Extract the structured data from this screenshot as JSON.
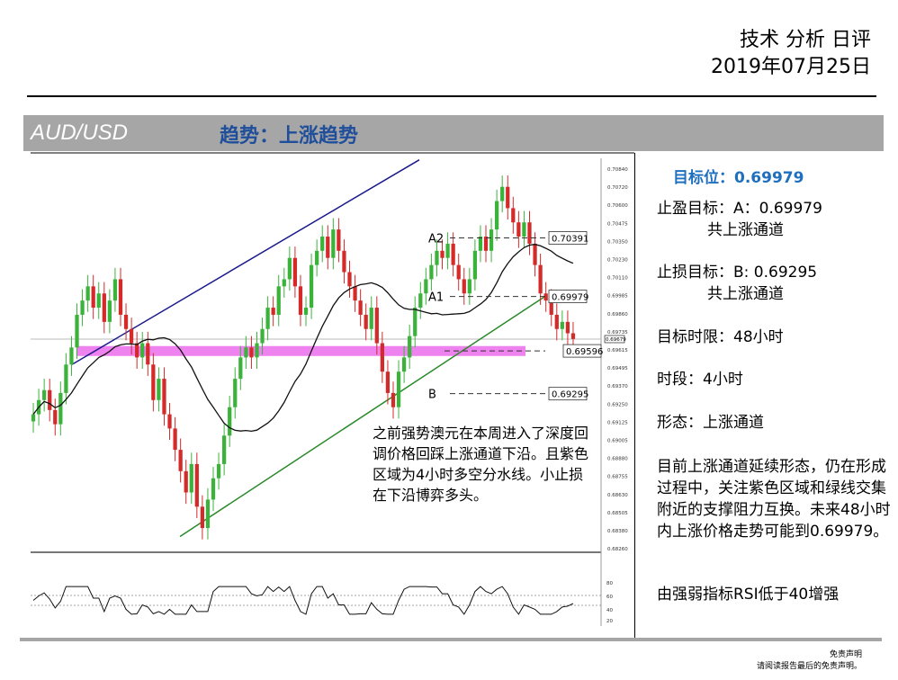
{
  "header": {
    "title": "技术 分析 日评",
    "date": "2019年07月25日"
  },
  "banner": {
    "pair": "AUD/USD",
    "trend": "趋势：上涨趋势"
  },
  "panel": {
    "target": "目标位：0.69979",
    "tp_label": "止盈目标：A：0.69979",
    "tp_note": "共上涨通道",
    "sl_label": "止损目标：B: 0.69295",
    "sl_note": "共上涨通道",
    "horizon": "目标时限：48小时",
    "timeframe": "时段：4小时",
    "pattern": "形态：上涨通道",
    "analysis": "目前上涨通道延续形态，仍在形成过程中，关注紫色区域和绿线交集附近的支撑阻力互换。未来48小时内上涨价格走势可能到0.69979。",
    "rsi_note": "由强弱指标RSI低于40增强"
  },
  "chart_note": "之前强势澳元在本周进入了深度回调价格回踩上涨通道下沿。且紫色区域为4小时多空分水线。小止损在下沿博弈多头。",
  "disclaimer": {
    "line1": "免责声明",
    "line2": "请阅读报告最后的免责声明。"
  },
  "chart_data": {
    "type": "candlestick",
    "pair": "AUD/USD",
    "y_ticks": [
      "0.70840",
      "0.70720",
      "0.70600",
      "0.70475",
      "0.70350",
      "0.70230",
      "0.70110",
      "0.69985",
      "0.69860",
      "0.69735",
      "0.69615",
      "0.69495",
      "0.69370",
      "0.69250",
      "0.69125",
      "0.69005",
      "0.68880",
      "0.68755",
      "0.68630",
      "0.68505",
      "0.68380",
      "0.68260"
    ],
    "current_price": "0.69679",
    "ylim": [
      0.6823,
      0.709
    ],
    "levels": [
      {
        "name": "A2",
        "value": "0.70391"
      },
      {
        "name": "A1",
        "value": "0.69979"
      },
      {
        "name": "",
        "value": "0.69596"
      },
      {
        "name": "B",
        "value": "0.69295"
      }
    ],
    "close": [
      0.6915,
      0.6925,
      0.6932,
      0.6918,
      0.6908,
      0.693,
      0.695,
      0.6962,
      0.6985,
      0.6995,
      0.7005,
      0.699,
      0.7,
      0.698,
      0.6995,
      0.701,
      0.6985,
      0.6975,
      0.6965,
      0.6955,
      0.6965,
      0.695,
      0.6925,
      0.694,
      0.6915,
      0.6905,
      0.689,
      0.6875,
      0.686,
      0.688,
      0.685,
      0.6835,
      0.6855,
      0.687,
      0.688,
      0.69,
      0.692,
      0.694,
      0.6955,
      0.6962,
      0.6955,
      0.6965,
      0.6975,
      0.699,
      0.6985,
      0.7005,
      0.701,
      0.7025,
      0.7005,
      0.6985,
      0.699,
      0.702,
      0.703,
      0.704,
      0.7025,
      0.7045,
      0.703,
      0.7015,
      0.7005,
      0.6995,
      0.6985,
      0.6975,
      0.699,
      0.6965,
      0.6945,
      0.693,
      0.692,
      0.6945,
      0.6955,
      0.697,
      0.699,
      0.7,
      0.701,
      0.702,
      0.703,
      0.7025,
      0.7035,
      0.702,
      0.701,
      0.7,
      0.701,
      0.703,
      0.704,
      0.703,
      0.7045,
      0.7065,
      0.7075,
      0.706,
      0.705,
      0.704,
      0.705,
      0.7035,
      0.702,
      0.7,
      0.6995,
      0.6985,
      0.6975,
      0.698,
      0.6972,
      0.6968
    ],
    "ma_period": 20,
    "rsi": {
      "ticks": [
        "80",
        "60",
        "40",
        "20"
      ],
      "ylim": [
        0,
        100
      ]
    },
    "grid": false
  }
}
